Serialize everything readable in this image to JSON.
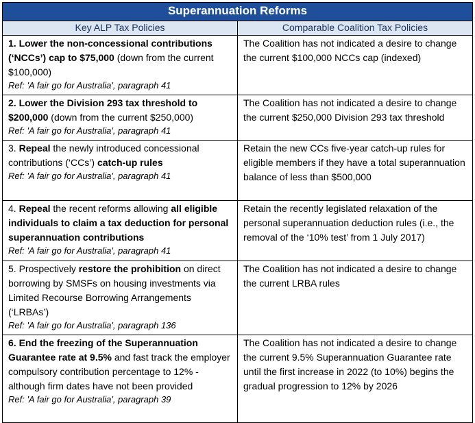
{
  "title": "Superannuation Reforms",
  "columns": [
    "Key ALP Tax Policies",
    "Comparable Coalition Tax Policies"
  ],
  "rows": [
    {
      "alp": [
        {
          "t": "1. Lower the non-concessional contributions (‘NCCs’) cap to $75,000",
          "b": true
        },
        {
          "t": " (down from the current $100,000)",
          "b": false
        }
      ],
      "ref": "Ref: 'A fair go for Australia', paragraph 41",
      "coalition": "The Coalition has not indicated a desire to change the current $100,000 NCCs cap (indexed)"
    },
    {
      "alp": [
        {
          "t": "2. Lower the Division 293 tax threshold to $200,000",
          "b": true
        },
        {
          "t": " (down from the current $250,000)",
          "b": false
        }
      ],
      "ref": "Ref: 'A fair go for Australia', paragraph 41",
      "coalition": "The Coalition has not indicated a desire to change the current $250,000 Division 293 tax threshold"
    },
    {
      "alp": [
        {
          "t": "3. ",
          "b": false
        },
        {
          "t": "Repeal",
          "b": true
        },
        {
          "t": " the newly introduced concessional contributions (‘CCs’) ",
          "b": false
        },
        {
          "t": "catch-up rules",
          "b": true
        }
      ],
      "ref": "Ref: 'A fair go for Australia', paragraph 41",
      "coalition": "Retain the new CCs five-year catch-up rules for eligible members if they have a total superannuation balance of less than $500,000"
    },
    {
      "alp": [
        {
          "t": "4. ",
          "b": false
        },
        {
          "t": "Repeal",
          "b": true
        },
        {
          "t": " the recent reforms allowing ",
          "b": false
        },
        {
          "t": "all eligible individuals to claim a tax deduction for personal superannuation contributions",
          "b": true
        }
      ],
      "ref": "Ref: 'A fair go for Australia', paragraph 41",
      "coalition": "Retain the recently legislated relaxation of the personal superannuation deduction rules (i.e., the removal of the ‘10% test’ from 1 July 2017)"
    },
    {
      "alp": [
        {
          "t": "5. Prospectively ",
          "b": false
        },
        {
          "t": "restore the prohibition",
          "b": true
        },
        {
          "t": " on direct borrowing by SMSFs on housing investments via Limited Recourse Borrowing Arrangements (‘LRBAs’)",
          "b": false
        }
      ],
      "ref": "Ref: 'A fair go for Australia', paragraph 136",
      "coalition": "The Coalition has not indicated a desire to change the current LRBA rules"
    },
    {
      "alp": [
        {
          "t": "6. End the freezing of the Superannuation Guarantee rate at 9.5%",
          "b": true
        },
        {
          "t": " and fast track the employer compulsory contribution percentage to 12% - although firm dates have not been provided",
          "b": false
        }
      ],
      "ref": "Ref: 'A fair go for Australia', paragraph 39",
      "coalition": "The Coalition has not indicated a desire to change the current 9.5% Superannuation Guarantee rate until the first increase in 2022 (to 10%) begins the gradual progression to 12% by 2026"
    }
  ]
}
